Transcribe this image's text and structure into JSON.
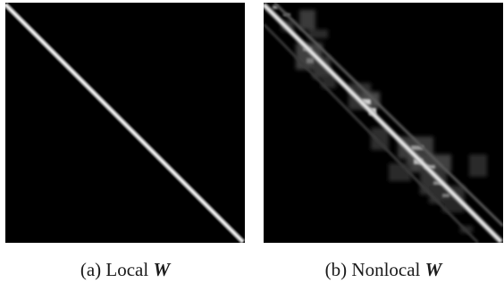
{
  "panels": [
    {
      "id": "a",
      "caption_label": "(a) Local",
      "caption_symbol": "W",
      "pattern": "diagonal-band",
      "background_color": "#000000",
      "stroke_color": "#e6e6e6"
    },
    {
      "id": "b",
      "caption_label": "(b) Nonlocal",
      "caption_symbol": "W",
      "pattern": "diagonal-band-with-scattered-offdiagonal-entries",
      "background_color": "#000000",
      "stroke_color": "#f2f2f2"
    }
  ]
}
